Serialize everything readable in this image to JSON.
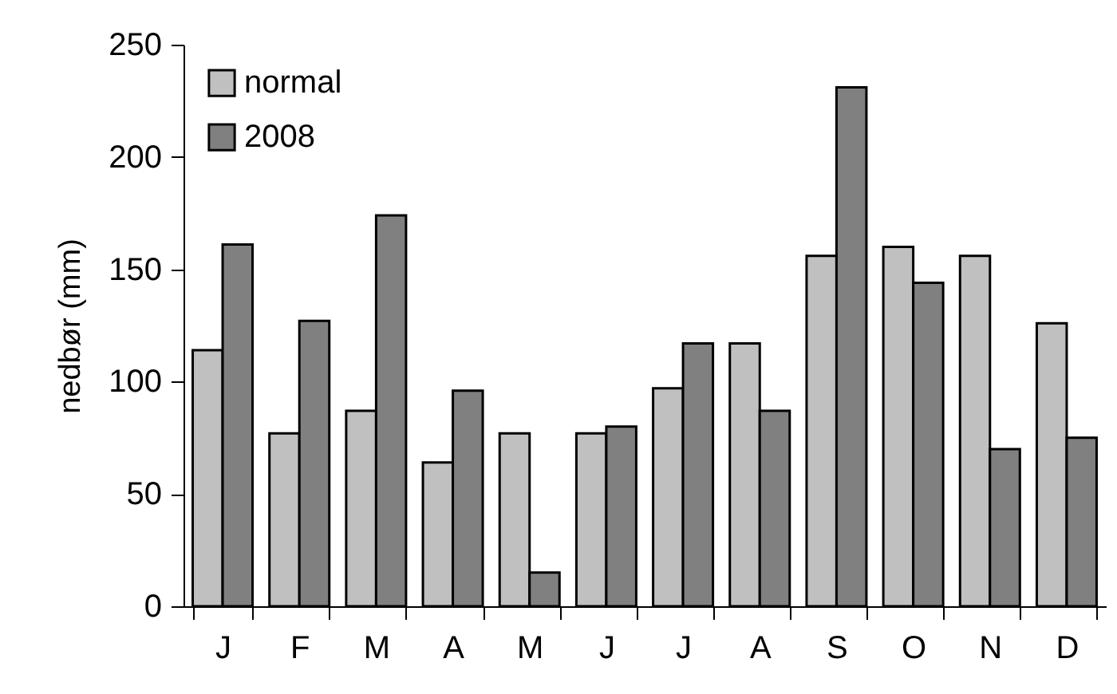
{
  "chart_data": {
    "type": "bar",
    "ylabel": "nedbør (mm)",
    "categories": [
      "J",
      "F",
      "M",
      "A",
      "M",
      "J",
      "J",
      "A",
      "S",
      "O",
      "N",
      "D"
    ],
    "series": [
      {
        "name": "normal",
        "color": "#c0c0c0",
        "values": [
          114,
          77,
          87,
          64,
          77,
          77,
          97,
          117,
          156,
          160,
          156,
          126
        ]
      },
      {
        "name": "2008",
        "color": "#808080",
        "values": [
          161,
          127,
          174,
          96,
          15,
          80,
          117,
          87,
          231,
          144,
          70,
          75
        ]
      }
    ],
    "ylim": [
      0,
      250
    ],
    "yticks": [
      0,
      50,
      100,
      150,
      200,
      250
    ],
    "grid": false,
    "legend": "top left"
  }
}
